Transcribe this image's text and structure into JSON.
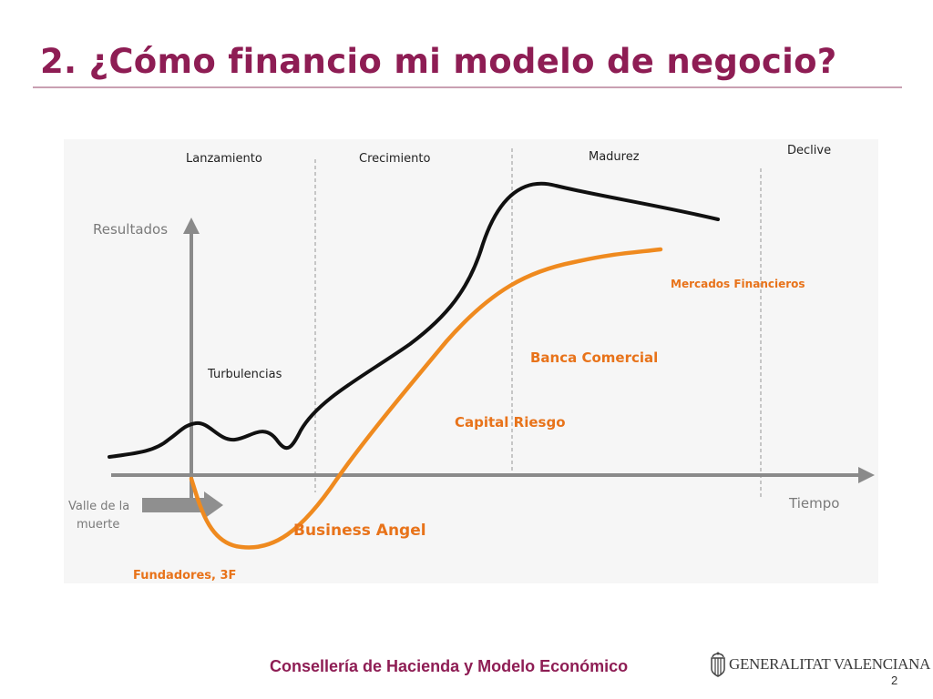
{
  "slide": {
    "title": "2. ¿Cómo financio mi modelo de negocio?",
    "page_number": "2"
  },
  "diagram": {
    "phases": [
      "Lanzamiento",
      "Crecimiento",
      "Madurez",
      "Declive"
    ],
    "y_axis_label": "Resultados",
    "x_axis_label": "Tiempo",
    "turbulence_label": "Turbulencias",
    "death_valley_label_line1": "Valle de la",
    "death_valley_label_line2": "muerte",
    "financing_sources": [
      "Fundadores, 3F",
      "Business Angel",
      "Capital Riesgo",
      "Banca Comercial",
      "Mercados Financieros"
    ],
    "colors": {
      "results_curve": "#111111",
      "financing_curve": "#ef8a1f",
      "financing_labels": "#e8731a",
      "axis": "#8a8a8a",
      "phase_divider": "#b5b5b5",
      "death_valley_arrow": "#8f8f8f"
    }
  },
  "footer": {
    "department": "Consellería de Hacienda y Modelo Económico",
    "logo_text": "GENERALITAT VALENCIANA",
    "logo_icon": "coat-of-arms-icon"
  },
  "theme": {
    "title_color": "#8e1d54",
    "rule_color": "#c9a0b2"
  }
}
